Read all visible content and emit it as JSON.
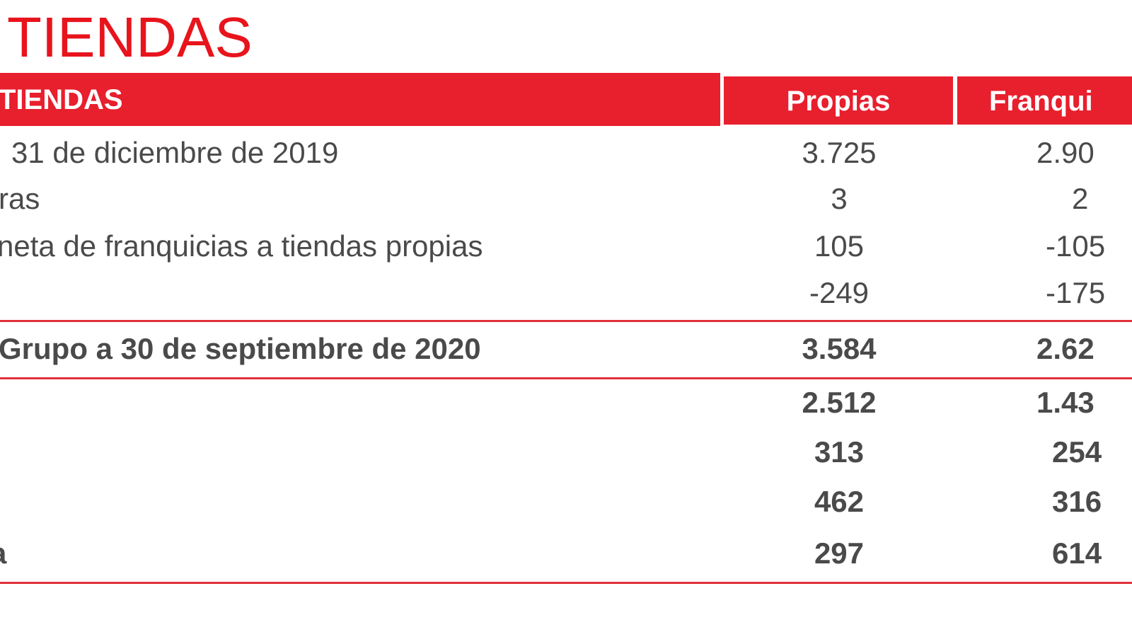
{
  "title": "TIENDAS",
  "table": {
    "header": {
      "label": "TIENDAS",
      "propias": "Propias",
      "franquicias": "Franqui"
    },
    "rows": [
      {
        "label": "31 de diciembre de 2019",
        "propias": "3.725",
        "franquicias": "2.90"
      },
      {
        "label": "ras",
        "propias": "3",
        "franquicias": "2"
      },
      {
        "label": "neta de franquicias a tiendas propias",
        "propias": "105",
        "franquicias": "-105"
      },
      {
        "label": "",
        "propias": "-249",
        "franquicias": "-175"
      },
      {
        "label": "Grupo a 30 de septiembre de 2020",
        "propias": "3.584",
        "franquicias": "2.62"
      },
      {
        "label": "",
        "propias": "2.512",
        "franquicias": "1.43"
      },
      {
        "label": "",
        "propias": "313",
        "franquicias": "254"
      },
      {
        "label": "",
        "propias": "462",
        "franquicias": "316"
      },
      {
        "label": "a",
        "propias": "297",
        "franquicias": "614"
      }
    ]
  },
  "colors": {
    "accent": "#e81f2d",
    "text": "#4a4a4a"
  }
}
